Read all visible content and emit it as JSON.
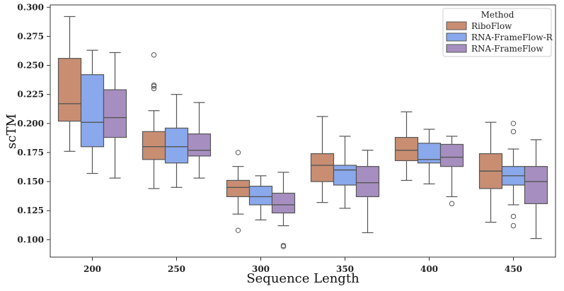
{
  "chart_data": {
    "type": "box",
    "xlabel": "Sequence Length",
    "ylabel": "scTM",
    "ylim": [
      0.085,
      0.302
    ],
    "yticks": [
      "0.100",
      "0.125",
      "0.150",
      "0.175",
      "0.200",
      "0.225",
      "0.250",
      "0.275",
      "0.300"
    ],
    "ytick_values": [
      0.1,
      0.125,
      0.15,
      0.175,
      0.2,
      0.225,
      0.25,
      0.275,
      0.3
    ],
    "categories": [
      "200",
      "250",
      "300",
      "350",
      "400",
      "450"
    ],
    "legend": {
      "title": "Method",
      "position": "top-right"
    },
    "series": [
      {
        "name": "RiboFlow",
        "color": "#C98E72",
        "boxes": [
          {
            "whislo": 0.176,
            "q1": 0.202,
            "med": 0.217,
            "q3": 0.256,
            "whishi": 0.292,
            "fliers": []
          },
          {
            "whislo": 0.144,
            "q1": 0.169,
            "med": 0.18,
            "q3": 0.193,
            "whishi": 0.211,
            "fliers": [
              0.23,
              0.232,
              0.233,
              0.259
            ]
          },
          {
            "whislo": 0.122,
            "q1": 0.137,
            "med": 0.145,
            "q3": 0.151,
            "whishi": 0.163,
            "fliers": [
              0.108,
              0.175
            ]
          },
          {
            "whislo": 0.132,
            "q1": 0.15,
            "med": 0.164,
            "q3": 0.174,
            "whishi": 0.206,
            "fliers": []
          },
          {
            "whislo": 0.151,
            "q1": 0.168,
            "med": 0.177,
            "q3": 0.188,
            "whishi": 0.21,
            "fliers": []
          },
          {
            "whislo": 0.115,
            "q1": 0.144,
            "med": 0.159,
            "q3": 0.174,
            "whishi": 0.201,
            "fliers": []
          }
        ]
      },
      {
        "name": "RNA-FrameFlow-R",
        "color": "#8AA8EC",
        "boxes": [
          {
            "whislo": 0.157,
            "q1": 0.18,
            "med": 0.201,
            "q3": 0.242,
            "whishi": 0.263,
            "fliers": []
          },
          {
            "whislo": 0.145,
            "q1": 0.166,
            "med": 0.18,
            "q3": 0.196,
            "whishi": 0.225,
            "fliers": []
          },
          {
            "whislo": 0.117,
            "q1": 0.13,
            "med": 0.137,
            "q3": 0.146,
            "whishi": 0.155,
            "fliers": []
          },
          {
            "whislo": 0.127,
            "q1": 0.147,
            "med": 0.16,
            "q3": 0.164,
            "whishi": 0.189,
            "fliers": []
          },
          {
            "whislo": 0.148,
            "q1": 0.166,
            "med": 0.169,
            "q3": 0.183,
            "whishi": 0.195,
            "fliers": []
          },
          {
            "whislo": 0.13,
            "q1": 0.147,
            "med": 0.155,
            "q3": 0.163,
            "whishi": 0.178,
            "fliers": [
              0.112,
              0.12,
              0.193,
              0.2
            ]
          }
        ]
      },
      {
        "name": "RNA-FrameFlow",
        "color": "#A68FC0",
        "boxes": [
          {
            "whislo": 0.153,
            "q1": 0.188,
            "med": 0.205,
            "q3": 0.229,
            "whishi": 0.261,
            "fliers": []
          },
          {
            "whislo": 0.153,
            "q1": 0.172,
            "med": 0.177,
            "q3": 0.191,
            "whishi": 0.218,
            "fliers": []
          },
          {
            "whislo": 0.112,
            "q1": 0.123,
            "med": 0.13,
            "q3": 0.14,
            "whishi": 0.158,
            "fliers": [
              0.094,
              0.095
            ]
          },
          {
            "whislo": 0.106,
            "q1": 0.137,
            "med": 0.149,
            "q3": 0.163,
            "whishi": 0.177,
            "fliers": []
          },
          {
            "whislo": 0.137,
            "q1": 0.163,
            "med": 0.171,
            "q3": 0.182,
            "whishi": 0.189,
            "fliers": [
              0.131
            ]
          },
          {
            "whislo": 0.101,
            "q1": 0.131,
            "med": 0.15,
            "q3": 0.163,
            "whishi": 0.186,
            "fliers": []
          }
        ]
      }
    ]
  }
}
